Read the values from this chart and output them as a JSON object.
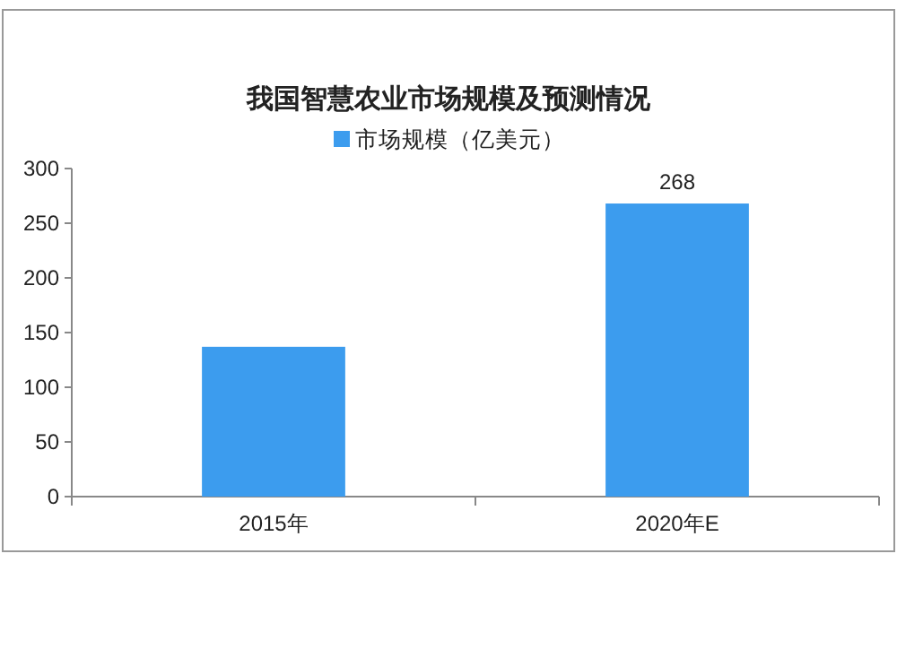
{
  "chart_data": {
    "type": "bar",
    "title": "我国智慧农业市场规模及预测情况",
    "categories": [
      "2015年",
      "2020年E"
    ],
    "series": [
      {
        "name": "市场规模（亿美元）",
        "color": "#3c9cee",
        "values": [
          137,
          268
        ],
        "value_labels": [
          null,
          "268"
        ]
      }
    ],
    "ylim": [
      0,
      300
    ],
    "yticks": [
      0,
      50,
      100,
      150,
      200,
      250,
      300
    ],
    "grid": false,
    "legend": "top"
  }
}
